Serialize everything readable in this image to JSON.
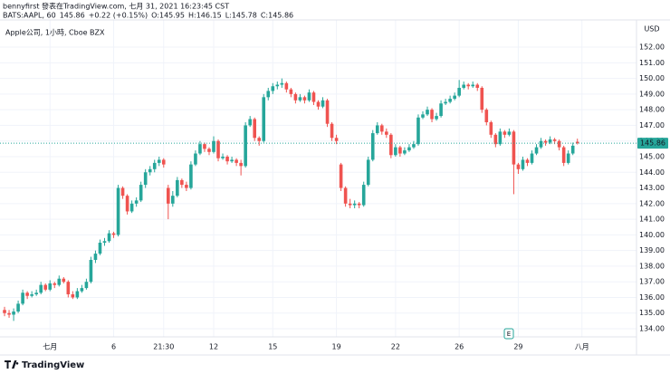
{
  "chart_data": {
    "type": "candlestick",
    "header": "bennyfirst 發表在TradingView.com, 七月 31, 2021 16:23:45 CST",
    "symbol": "BATS:AAPL, 60",
    "price": "145.86",
    "change": "+0.22 (+0.15%)",
    "ohlc_labels": [
      "O:145.95",
      "H:146.15",
      "L:145.78",
      "C:145.86"
    ],
    "legend": "Apple公司, 1小時, Cboe BZX",
    "currency": "USD",
    "event_marker": "E",
    "brand": "TradingView",
    "up_color": "#26a69a",
    "down_color": "#ef5350",
    "grid": true,
    "last_price": {
      "value": 145.86,
      "label": "145.86"
    },
    "xlim": [
      -1,
      139
    ],
    "xticks": [
      {
        "value": 10,
        "label": "七月"
      },
      {
        "value": 24,
        "label": "6"
      },
      {
        "value": 35,
        "label": "21:30"
      },
      {
        "value": 46,
        "label": "12"
      },
      {
        "value": 59,
        "label": "15"
      },
      {
        "value": 73,
        "label": "19"
      },
      {
        "value": 86,
        "label": "22"
      },
      {
        "value": 100,
        "label": "26"
      },
      {
        "value": 113,
        "label": "29"
      },
      {
        "value": 127,
        "label": "八月"
      }
    ],
    "ylim": [
      133.48,
      153.74
    ],
    "yticks": [
      {
        "value": 134,
        "label": "134.00"
      },
      {
        "value": 135,
        "label": "135.00"
      },
      {
        "value": 136,
        "label": "136.00"
      },
      {
        "value": 137,
        "label": "137.00"
      },
      {
        "value": 138,
        "label": "138.00"
      },
      {
        "value": 139,
        "label": "139.00"
      },
      {
        "value": 140,
        "label": "140.00"
      },
      {
        "value": 141,
        "label": "141.00"
      },
      {
        "value": 142,
        "label": "142.00"
      },
      {
        "value": 143,
        "label": "143.00"
      },
      {
        "value": 144,
        "label": "144.00"
      },
      {
        "value": 145,
        "label": "145.00"
      },
      {
        "value": 146,
        "label": "146.00"
      },
      {
        "value": 147,
        "label": "147.00"
      },
      {
        "value": 148,
        "label": "148.00"
      },
      {
        "value": 149,
        "label": "149.00"
      },
      {
        "value": 150,
        "label": "150.00"
      },
      {
        "value": 151,
        "label": "151.00"
      },
      {
        "value": 152,
        "label": "152.00"
      }
    ],
    "ohlc": [
      [
        135.2,
        135.4,
        134.8,
        135.0
      ],
      [
        135.0,
        135.2,
        134.7,
        134.9
      ],
      [
        134.9,
        135.3,
        134.5,
        135.1
      ],
      [
        135.1,
        135.8,
        135.0,
        135.6
      ],
      [
        135.6,
        136.5,
        135.5,
        136.3
      ],
      [
        136.3,
        136.4,
        135.9,
        136.1
      ],
      [
        136.1,
        136.4,
        136.0,
        136.2
      ],
      [
        136.2,
        136.5,
        136.1,
        136.3
      ],
      [
        136.3,
        137.0,
        136.2,
        136.8
      ],
      [
        136.8,
        136.9,
        136.4,
        136.5
      ],
      [
        136.5,
        137.1,
        136.4,
        136.9
      ],
      [
        136.9,
        137.0,
        136.6,
        136.8
      ],
      [
        136.8,
        137.4,
        136.7,
        137.2
      ],
      [
        137.2,
        137.3,
        136.9,
        137.0
      ],
      [
        137.0,
        137.1,
        136.0,
        136.2
      ],
      [
        136.2,
        136.4,
        135.9,
        136.0
      ],
      [
        136.0,
        136.6,
        135.9,
        136.4
      ],
      [
        136.4,
        136.8,
        136.3,
        136.6
      ],
      [
        136.6,
        137.2,
        136.5,
        137.0
      ],
      [
        137.0,
        138.6,
        136.9,
        138.4
      ],
      [
        138.4,
        139.0,
        138.2,
        138.8
      ],
      [
        138.8,
        139.7,
        138.7,
        139.5
      ],
      [
        139.5,
        139.8,
        139.3,
        139.6
      ],
      [
        139.6,
        140.3,
        139.5,
        140.1
      ],
      [
        140.1,
        140.2,
        139.8,
        140.0
      ],
      [
        140.0,
        143.2,
        139.9,
        143.0
      ],
      [
        143.0,
        143.1,
        142.3,
        142.5
      ],
      [
        142.5,
        142.6,
        141.3,
        141.5
      ],
      [
        141.5,
        142.2,
        141.4,
        142.0
      ],
      [
        142.0,
        142.4,
        141.8,
        142.2
      ],
      [
        142.2,
        143.4,
        142.1,
        143.2
      ],
      [
        143.2,
        144.2,
        143.0,
        144.0
      ],
      [
        144.0,
        144.4,
        143.8,
        144.2
      ],
      [
        144.2,
        144.8,
        144.0,
        144.6
      ],
      [
        144.6,
        145.0,
        144.4,
        144.8
      ],
      [
        144.8,
        144.9,
        144.3,
        144.5
      ],
      [
        143.0,
        143.2,
        141.0,
        142.0
      ],
      [
        142.0,
        142.8,
        141.8,
        142.5
      ],
      [
        142.5,
        143.7,
        142.4,
        143.5
      ],
      [
        143.5,
        143.6,
        143.0,
        143.2
      ],
      [
        143.2,
        143.4,
        142.8,
        143.0
      ],
      [
        143.0,
        144.7,
        142.9,
        144.5
      ],
      [
        144.5,
        145.4,
        144.4,
        145.2
      ],
      [
        145.2,
        146.0,
        145.1,
        145.8
      ],
      [
        145.8,
        145.9,
        145.3,
        145.5
      ],
      [
        145.5,
        145.6,
        145.1,
        145.3
      ],
      [
        145.3,
        146.3,
        145.2,
        146.0
      ],
      [
        146.0,
        146.1,
        144.7,
        144.9
      ],
      [
        144.9,
        145.2,
        144.8,
        145.0
      ],
      [
        145.0,
        145.1,
        144.5,
        144.7
      ],
      [
        144.7,
        145.0,
        144.6,
        144.8
      ],
      [
        144.8,
        144.9,
        144.4,
        144.6
      ],
      [
        144.6,
        144.8,
        143.8,
        144.4
      ],
      [
        144.4,
        147.2,
        144.3,
        147.0
      ],
      [
        147.0,
        147.6,
        146.9,
        147.4
      ],
      [
        147.4,
        147.5,
        146.0,
        146.2
      ],
      [
        146.2,
        146.3,
        145.7,
        146.0
      ],
      [
        146.0,
        149.0,
        145.9,
        148.8
      ],
      [
        148.8,
        149.4,
        148.6,
        149.2
      ],
      [
        149.2,
        149.7,
        149.0,
        149.5
      ],
      [
        149.5,
        149.8,
        149.3,
        149.6
      ],
      [
        149.6,
        150.0,
        149.4,
        149.7
      ],
      [
        149.7,
        149.8,
        149.1,
        149.3
      ],
      [
        149.3,
        149.4,
        148.8,
        149.0
      ],
      [
        149.0,
        149.1,
        148.4,
        148.6
      ],
      [
        148.6,
        149.0,
        148.5,
        148.8
      ],
      [
        148.8,
        148.9,
        148.4,
        148.6
      ],
      [
        148.6,
        149.3,
        148.5,
        149.1
      ],
      [
        149.1,
        149.2,
        148.3,
        148.5
      ],
      [
        148.5,
        148.6,
        148.0,
        148.2
      ],
      [
        148.2,
        148.8,
        148.1,
        148.6
      ],
      [
        148.6,
        148.7,
        146.9,
        147.1
      ],
      [
        147.1,
        147.2,
        146.0,
        146.2
      ],
      [
        146.2,
        146.4,
        145.8,
        146.0
      ],
      [
        144.5,
        144.6,
        142.8,
        143.0
      ],
      [
        143.0,
        143.1,
        141.8,
        142.0
      ],
      [
        142.0,
        142.3,
        141.7,
        141.9
      ],
      [
        141.9,
        142.2,
        141.7,
        142.0
      ],
      [
        142.0,
        142.1,
        141.7,
        141.9
      ],
      [
        141.9,
        143.4,
        141.8,
        143.2
      ],
      [
        143.2,
        145.0,
        143.1,
        144.8
      ],
      [
        144.8,
        146.7,
        144.7,
        146.5
      ],
      [
        146.5,
        147.2,
        146.4,
        147.0
      ],
      [
        147.0,
        147.1,
        146.4,
        146.6
      ],
      [
        146.6,
        146.8,
        146.2,
        146.4
      ],
      [
        146.4,
        146.5,
        144.9,
        145.1
      ],
      [
        145.1,
        145.8,
        145.0,
        145.6
      ],
      [
        145.6,
        145.7,
        145.0,
        145.2
      ],
      [
        145.2,
        145.6,
        145.1,
        145.4
      ],
      [
        145.4,
        145.8,
        145.3,
        145.6
      ],
      [
        145.6,
        146.0,
        145.5,
        145.8
      ],
      [
        145.8,
        147.7,
        145.7,
        147.5
      ],
      [
        147.5,
        147.9,
        147.4,
        147.7
      ],
      [
        147.7,
        148.2,
        147.6,
        148.0
      ],
      [
        148.0,
        148.1,
        147.2,
        147.4
      ],
      [
        147.4,
        147.8,
        147.3,
        147.6
      ],
      [
        147.6,
        148.6,
        147.5,
        148.4
      ],
      [
        148.4,
        148.7,
        148.3,
        148.5
      ],
      [
        148.5,
        148.9,
        148.4,
        148.7
      ],
      [
        148.7,
        149.1,
        148.6,
        148.9
      ],
      [
        148.9,
        149.9,
        148.8,
        149.4
      ],
      [
        149.4,
        149.8,
        149.3,
        149.6
      ],
      [
        149.6,
        149.7,
        149.3,
        149.5
      ],
      [
        149.5,
        149.8,
        149.4,
        149.6
      ],
      [
        149.6,
        149.7,
        149.2,
        149.4
      ],
      [
        149.4,
        149.5,
        147.8,
        148.0
      ],
      [
        148.0,
        148.1,
        147.0,
        147.2
      ],
      [
        147.2,
        147.3,
        146.2,
        146.4
      ],
      [
        146.4,
        146.5,
        145.6,
        145.8
      ],
      [
        145.8,
        146.8,
        145.7,
        146.6
      ],
      [
        146.6,
        146.7,
        146.2,
        146.4
      ],
      [
        146.4,
        146.8,
        146.3,
        146.6
      ],
      [
        146.6,
        146.7,
        142.6,
        144.5
      ],
      [
        144.5,
        144.6,
        143.9,
        144.2
      ],
      [
        144.2,
        145.0,
        144.1,
        144.8
      ],
      [
        144.8,
        144.9,
        144.4,
        144.6
      ],
      [
        144.6,
        145.4,
        144.5,
        145.2
      ],
      [
        145.2,
        145.8,
        145.1,
        145.6
      ],
      [
        145.6,
        146.2,
        145.5,
        146.0
      ],
      [
        146.0,
        146.1,
        145.7,
        145.9
      ],
      [
        145.9,
        146.3,
        145.8,
        146.1
      ],
      [
        146.1,
        146.2,
        145.8,
        146.0
      ],
      [
        146.0,
        146.1,
        145.4,
        145.6
      ],
      [
        145.6,
        145.7,
        144.4,
        144.6
      ],
      [
        144.6,
        145.4,
        144.5,
        145.2
      ],
      [
        145.2,
        145.9,
        145.1,
        145.7
      ],
      [
        145.95,
        146.15,
        145.78,
        145.86
      ]
    ]
  }
}
